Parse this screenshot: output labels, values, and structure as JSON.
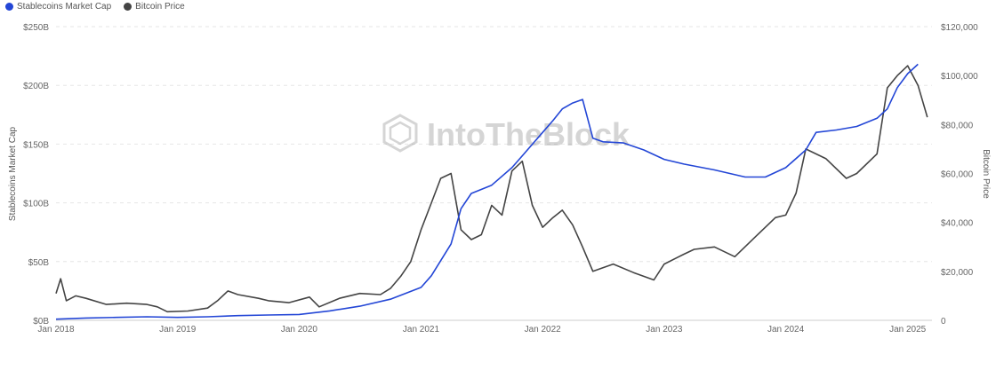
{
  "chart_data": {
    "type": "line",
    "watermark": "IntoTheBlock",
    "x_ticks": [
      "Jan 2018",
      "Jan 2019",
      "Jan 2020",
      "Jan 2021",
      "Jan 2022",
      "Jan 2023",
      "Jan 2024",
      "Jan 2025"
    ],
    "left_axis": {
      "label": "Stablecoins Market Cap",
      "ticks": [
        "$0B",
        "$50B",
        "$100B",
        "$150B",
        "$200B",
        "$250B"
      ],
      "range": [
        0,
        250
      ]
    },
    "right_axis": {
      "label": "Bitcoin Price",
      "ticks": [
        "0",
        "$20,000",
        "$40,000",
        "$60,000",
        "$80,000",
        "$100,000",
        "$120,000"
      ],
      "range": [
        0,
        120000
      ]
    },
    "grid": true,
    "legend_position": "top-left",
    "series": [
      {
        "name": "Stablecoins Market Cap",
        "axis": "left",
        "color": "#2346d6",
        "points": [
          [
            "2018-01",
            1
          ],
          [
            "2018-04",
            2
          ],
          [
            "2018-07",
            2.5
          ],
          [
            "2018-10",
            3
          ],
          [
            "2019-01",
            2.5
          ],
          [
            "2019-04",
            3
          ],
          [
            "2019-07",
            4
          ],
          [
            "2019-10",
            4.5
          ],
          [
            "2020-01",
            5
          ],
          [
            "2020-04",
            8
          ],
          [
            "2020-07",
            12
          ],
          [
            "2020-10",
            18
          ],
          [
            "2021-01",
            28
          ],
          [
            "2021-02",
            38
          ],
          [
            "2021-04",
            65
          ],
          [
            "2021-05",
            95
          ],
          [
            "2021-06",
            108
          ],
          [
            "2021-08",
            115
          ],
          [
            "2021-10",
            130
          ],
          [
            "2021-11",
            140
          ],
          [
            "2022-01",
            160
          ],
          [
            "2022-02",
            170
          ],
          [
            "2022-03",
            180
          ],
          [
            "2022-04",
            185
          ],
          [
            "2022-05",
            188
          ],
          [
            "2022-06",
            155
          ],
          [
            "2022-07",
            152
          ],
          [
            "2022-09",
            151
          ],
          [
            "2022-11",
            145
          ],
          [
            "2023-01",
            137
          ],
          [
            "2023-03",
            133
          ],
          [
            "2023-06",
            128
          ],
          [
            "2023-09",
            122
          ],
          [
            "2023-11",
            122
          ],
          [
            "2024-01",
            130
          ],
          [
            "2024-03",
            145
          ],
          [
            "2024-04",
            160
          ],
          [
            "2024-06",
            162
          ],
          [
            "2024-08",
            165
          ],
          [
            "2024-10",
            172
          ],
          [
            "2024-11",
            180
          ],
          [
            "2024-12",
            198
          ],
          [
            "2025-01",
            210
          ],
          [
            "2025-02",
            218
          ]
        ]
      },
      {
        "name": "Bitcoin Price",
        "axis": "right",
        "color": "#444444",
        "points": [
          [
            "2018-01",
            11000
          ],
          [
            "2018-01-15",
            17000
          ],
          [
            "2018-02",
            8000
          ],
          [
            "2018-03",
            10000
          ],
          [
            "2018-04",
            9000
          ],
          [
            "2018-06",
            6500
          ],
          [
            "2018-08",
            7000
          ],
          [
            "2018-10",
            6500
          ],
          [
            "2018-11",
            5500
          ],
          [
            "2018-12",
            3500
          ],
          [
            "2019-02",
            3800
          ],
          [
            "2019-04",
            5000
          ],
          [
            "2019-05",
            8000
          ],
          [
            "2019-06",
            12000
          ],
          [
            "2019-07",
            10500
          ],
          [
            "2019-09",
            9000
          ],
          [
            "2019-10",
            8000
          ],
          [
            "2019-12",
            7200
          ],
          [
            "2020-02",
            9500
          ],
          [
            "2020-03",
            5500
          ],
          [
            "2020-05",
            9000
          ],
          [
            "2020-07",
            11000
          ],
          [
            "2020-09",
            10500
          ],
          [
            "2020-10",
            13000
          ],
          [
            "2020-11",
            18000
          ],
          [
            "2020-12",
            24000
          ],
          [
            "2021-01",
            37000
          ],
          [
            "2021-02",
            48000
          ],
          [
            "2021-03",
            58000
          ],
          [
            "2021-04",
            60000
          ],
          [
            "2021-05",
            37000
          ],
          [
            "2021-06",
            33000
          ],
          [
            "2021-07",
            35000
          ],
          [
            "2021-08",
            47000
          ],
          [
            "2021-09",
            43000
          ],
          [
            "2021-10",
            61000
          ],
          [
            "2021-11",
            65000
          ],
          [
            "2021-12",
            47000
          ],
          [
            "2022-01",
            38000
          ],
          [
            "2022-02",
            42000
          ],
          [
            "2022-03",
            45000
          ],
          [
            "2022-04",
            39000
          ],
          [
            "2022-05",
            30000
          ],
          [
            "2022-06",
            20000
          ],
          [
            "2022-08",
            23000
          ],
          [
            "2022-10",
            19500
          ],
          [
            "2022-12",
            16500
          ],
          [
            "2023-01",
            23000
          ],
          [
            "2023-03",
            27000
          ],
          [
            "2023-04",
            29000
          ],
          [
            "2023-06",
            30000
          ],
          [
            "2023-08",
            26000
          ],
          [
            "2023-10",
            34000
          ],
          [
            "2023-12",
            42000
          ],
          [
            "2024-01",
            43000
          ],
          [
            "2024-02",
            52000
          ],
          [
            "2024-03",
            70000
          ],
          [
            "2024-05",
            66000
          ],
          [
            "2024-07",
            58000
          ],
          [
            "2024-08",
            60000
          ],
          [
            "2024-10",
            68000
          ],
          [
            "2024-11",
            95000
          ],
          [
            "2024-12",
            100000
          ],
          [
            "2025-01",
            104000
          ],
          [
            "2025-02",
            96000
          ],
          [
            "2025-03",
            83000
          ]
        ]
      }
    ]
  }
}
